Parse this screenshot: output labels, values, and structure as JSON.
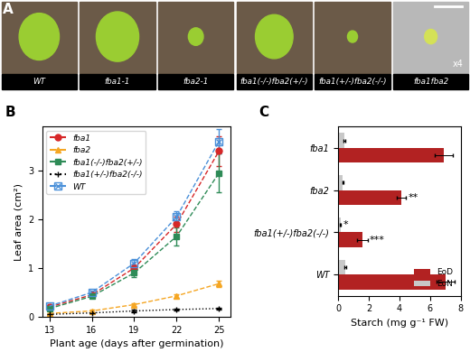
{
  "image_panel": {
    "panel": "A",
    "labels": [
      "WT",
      "fba1-1",
      "fba2-1",
      "fba1(-/-)fba2(+/-)",
      "fba1(+/-)fba2(-/-)",
      "fba1fba2"
    ],
    "magnification": "x4"
  },
  "chart_data": [
    {
      "panel": "B",
      "type": "line",
      "x_label": "Plant age (days after germination)",
      "y_label": "Leaf area (cm²)",
      "x": [
        13,
        16,
        19,
        22,
        25
      ],
      "xlim": [
        12.5,
        25.8
      ],
      "xticks": [
        13,
        16,
        19,
        22,
        25
      ],
      "ylim": [
        0,
        3.9
      ],
      "yticks": [
        0,
        1,
        2,
        3
      ],
      "legend": "upper left",
      "series": [
        {
          "name": "fba1",
          "color": "#d62728",
          "marker": "o",
          "line_style": "dashed",
          "values": [
            0.2,
            0.45,
            1.0,
            1.9,
            3.4
          ],
          "errors": [
            0.02,
            0.04,
            0.08,
            0.15,
            0.3
          ]
        },
        {
          "name": "fba2",
          "color": "#f5a623",
          "marker": "^",
          "line_style": "dashed",
          "values": [
            0.07,
            0.12,
            0.25,
            0.43,
            0.68
          ],
          "errors": [
            0.01,
            0.02,
            0.03,
            0.04,
            0.06
          ]
        },
        {
          "name": "fba1(-/-)fba2(+/-)",
          "color": "#2e8b57",
          "marker": "s",
          "line_style": "dashed",
          "values": [
            0.17,
            0.42,
            0.9,
            1.65,
            2.95
          ],
          "errors": [
            0.02,
            0.04,
            0.09,
            0.18,
            0.4
          ]
        },
        {
          "name": "fba1(+/-)fba2(-/-)",
          "color": "#000000",
          "marker": "+",
          "line_style": "dotted",
          "values": [
            0.05,
            0.08,
            0.12,
            0.15,
            0.17
          ],
          "errors": [
            0.01,
            0.01,
            0.02,
            0.02,
            0.02
          ]
        },
        {
          "name": "WT",
          "color": "#4a90d9",
          "marker": "boxed_x",
          "line_style": "dashed",
          "values": [
            0.22,
            0.5,
            1.1,
            2.05,
            3.6
          ],
          "errors": [
            0.02,
            0.04,
            0.08,
            0.12,
            0.25
          ]
        }
      ]
    },
    {
      "panel": "C",
      "type": "bar",
      "orientation": "horizontal",
      "x_label": "Starch (mg g⁻¹ FW)",
      "categories": [
        "fba1",
        "fba2",
        "fba1(+/-)fba2(-/-)",
        "WT"
      ],
      "xlim": [
        0,
        8
      ],
      "xticks": [
        0,
        2,
        4,
        6,
        8
      ],
      "legend": "lower right",
      "series": [
        {
          "name": "EoD",
          "color": "#b22222",
          "values": [
            6.9,
            4.1,
            1.55,
            7.0
          ],
          "errors": [
            0.6,
            0.3,
            0.35,
            0.6
          ]
        },
        {
          "name": "EoN",
          "color": "#c8c8c8",
          "values": [
            0.4,
            0.3,
            0.15,
            0.45
          ],
          "errors": [
            0.05,
            0.04,
            0.03,
            0.05
          ]
        }
      ],
      "annotations": [
        {
          "text": "**",
          "category": "fba2",
          "series": "EoD"
        },
        {
          "text": "*",
          "category": "fba1(+/-)fba2(-/-)",
          "series": "EoN"
        },
        {
          "text": "***",
          "category": "fba1(+/-)fba2(-/-)",
          "series": "EoD"
        }
      ]
    }
  ]
}
